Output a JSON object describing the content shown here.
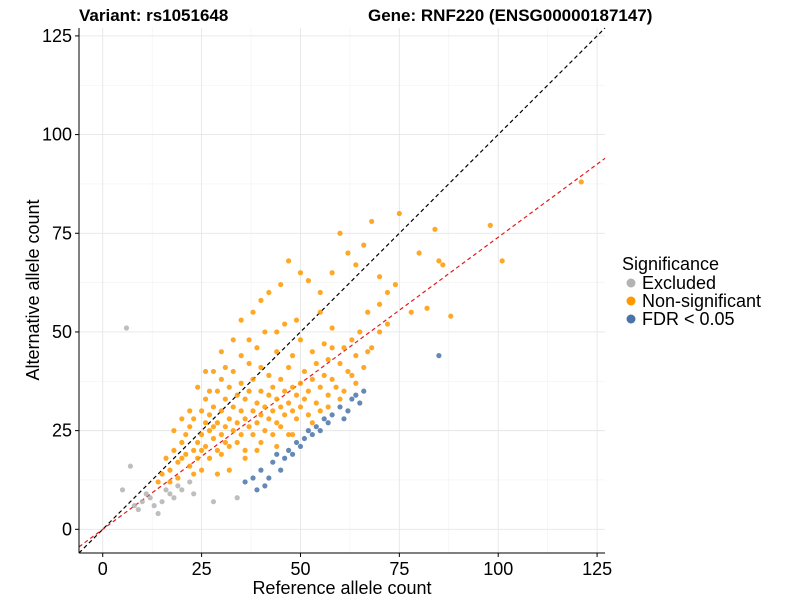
{
  "title": {
    "variant": "Variant: rs1051648",
    "gene": "Gene: RNF220 (ENSG00000187147)"
  },
  "legend": {
    "title": "Significance",
    "items": [
      {
        "label": "Excluded",
        "color": "#b3b3b3"
      },
      {
        "label": "Non-significant",
        "color": "#ff9900"
      },
      {
        "label": "FDR < 0.05",
        "color": "#4a74a8"
      }
    ]
  },
  "chart_data": {
    "type": "scatter",
    "xlabel": "Reference allele count",
    "ylabel": "Alternative allele count",
    "xlim": [
      -6,
      127
    ],
    "ylim": [
      -6,
      127
    ],
    "xticks": [
      0,
      25,
      50,
      75,
      100,
      125
    ],
    "yticks": [
      0,
      25,
      50,
      75,
      100,
      125
    ],
    "grid": true,
    "lines": [
      {
        "name": "identity",
        "slope": 1,
        "intercept": 0,
        "color": "#000000",
        "dash": "dashed"
      },
      {
        "name": "fit",
        "slope": 0.74,
        "intercept": 0,
        "color": "#e41a1c",
        "dash": "dashed"
      }
    ],
    "series": [
      {
        "name": "Excluded",
        "color": "#b3b3b3",
        "points": [
          [
            6,
            51
          ],
          [
            7,
            16
          ],
          [
            5,
            10
          ],
          [
            9,
            5
          ],
          [
            10,
            7
          ],
          [
            12,
            8
          ],
          [
            14,
            4
          ],
          [
            15,
            7
          ],
          [
            17,
            9
          ],
          [
            18,
            8
          ],
          [
            20,
            10
          ],
          [
            23,
            9
          ],
          [
            28,
            7
          ],
          [
            34,
            8
          ],
          [
            16,
            10
          ],
          [
            11,
            9
          ],
          [
            19,
            11
          ],
          [
            22,
            12
          ],
          [
            8,
            6
          ],
          [
            13,
            6
          ]
        ]
      },
      {
        "name": "Non-significant",
        "color": "#ff9900",
        "points": [
          [
            14,
            12
          ],
          [
            15,
            14
          ],
          [
            16,
            18
          ],
          [
            17,
            15
          ],
          [
            18,
            20
          ],
          [
            19,
            17
          ],
          [
            20,
            22
          ],
          [
            20,
            18
          ],
          [
            21,
            24
          ],
          [
            21,
            19
          ],
          [
            22,
            16
          ],
          [
            22,
            26
          ],
          [
            23,
            20
          ],
          [
            23,
            28
          ],
          [
            24,
            22
          ],
          [
            24,
            18
          ],
          [
            25,
            24
          ],
          [
            25,
            30
          ],
          [
            25,
            20
          ],
          [
            26,
            27
          ],
          [
            26,
            21
          ],
          [
            26,
            33
          ],
          [
            27,
            25
          ],
          [
            27,
            29
          ],
          [
            27,
            18
          ],
          [
            28,
            23
          ],
          [
            28,
            31
          ],
          [
            28,
            26
          ],
          [
            29,
            20
          ],
          [
            29,
            35
          ],
          [
            29,
            27
          ],
          [
            30,
            24
          ],
          [
            30,
            30
          ],
          [
            30,
            19
          ],
          [
            30,
            38
          ],
          [
            31,
            26
          ],
          [
            31,
            33
          ],
          [
            31,
            22
          ],
          [
            32,
            28
          ],
          [
            32,
            36
          ],
          [
            32,
            21
          ],
          [
            33,
            25
          ],
          [
            33,
            31
          ],
          [
            33,
            40
          ],
          [
            34,
            27
          ],
          [
            34,
            34
          ],
          [
            34,
            22
          ],
          [
            35,
            30
          ],
          [
            35,
            24
          ],
          [
            35,
            37
          ],
          [
            35,
            44
          ],
          [
            36,
            28
          ],
          [
            36,
            33
          ],
          [
            36,
            20
          ],
          [
            37,
            26
          ],
          [
            37,
            35
          ],
          [
            37,
            42
          ],
          [
            38,
            30
          ],
          [
            38,
            24
          ],
          [
            38,
            38
          ],
          [
            39,
            32
          ],
          [
            39,
            27
          ],
          [
            39,
            46
          ],
          [
            40,
            29
          ],
          [
            40,
            35
          ],
          [
            40,
            22
          ],
          [
            40,
            41
          ],
          [
            41,
            31
          ],
          [
            41,
            25
          ],
          [
            41,
            50
          ],
          [
            42,
            34
          ],
          [
            42,
            28
          ],
          [
            42,
            39
          ],
          [
            43,
            30
          ],
          [
            43,
            36
          ],
          [
            43,
            24
          ],
          [
            44,
            33
          ],
          [
            44,
            27
          ],
          [
            44,
            45
          ],
          [
            45,
            31
          ],
          [
            45,
            38
          ],
          [
            45,
            26
          ],
          [
            46,
            35
          ],
          [
            46,
            29
          ],
          [
            46,
            52
          ],
          [
            47,
            32
          ],
          [
            47,
            41
          ],
          [
            47,
            24
          ],
          [
            48,
            36
          ],
          [
            48,
            30
          ],
          [
            48,
            44
          ],
          [
            49,
            34
          ],
          [
            49,
            28
          ],
          [
            50,
            37
          ],
          [
            50,
            31
          ],
          [
            50,
            48
          ],
          [
            51,
            33
          ],
          [
            51,
            40
          ],
          [
            52,
            35
          ],
          [
            52,
            29
          ],
          [
            53,
            38
          ],
          [
            53,
            45
          ],
          [
            54,
            32
          ],
          [
            54,
            42
          ],
          [
            55,
            36
          ],
          [
            55,
            30
          ],
          [
            56,
            39
          ],
          [
            56,
            47
          ],
          [
            57,
            34
          ],
          [
            57,
            43
          ],
          [
            58,
            38
          ],
          [
            58,
            51
          ],
          [
            59,
            36
          ],
          [
            60,
            42
          ],
          [
            60,
            33
          ],
          [
            61,
            46
          ],
          [
            62,
            40
          ],
          [
            63,
            48
          ],
          [
            64,
            44
          ],
          [
            65,
            50
          ],
          [
            66,
            41
          ],
          [
            67,
            55
          ],
          [
            68,
            46
          ],
          [
            70,
            57
          ],
          [
            72,
            52
          ],
          [
            28,
            40
          ],
          [
            30,
            45
          ],
          [
            33,
            48
          ],
          [
            35,
            53
          ],
          [
            38,
            55
          ],
          [
            40,
            58
          ],
          [
            42,
            60
          ],
          [
            45,
            62
          ],
          [
            47,
            68
          ],
          [
            50,
            65
          ],
          [
            52,
            63
          ],
          [
            55,
            60
          ],
          [
            58,
            65
          ],
          [
            60,
            75
          ],
          [
            62,
            70
          ],
          [
            64,
            67
          ],
          [
            66,
            72
          ],
          [
            68,
            78
          ],
          [
            70,
            64
          ],
          [
            72,
            60
          ],
          [
            74,
            62
          ],
          [
            75,
            80
          ],
          [
            78,
            55
          ],
          [
            80,
            70
          ],
          [
            82,
            56
          ],
          [
            84,
            76
          ],
          [
            85,
            68
          ],
          [
            86,
            67
          ],
          [
            88,
            54
          ],
          [
            98,
            77
          ],
          [
            101,
            68
          ],
          [
            121,
            88
          ],
          [
            24,
            36
          ],
          [
            26,
            40
          ],
          [
            22,
            30
          ],
          [
            20,
            28
          ],
          [
            18,
            25
          ],
          [
            32,
            15
          ],
          [
            36,
            18
          ],
          [
            39,
            20
          ],
          [
            44,
            21
          ],
          [
            48,
            24
          ],
          [
            53,
            27
          ],
          [
            57,
            31
          ],
          [
            61,
            35
          ],
          [
            64,
            37
          ],
          [
            29,
            14
          ],
          [
            25,
            15
          ],
          [
            23,
            14
          ],
          [
            19,
            13
          ],
          [
            17,
            12
          ],
          [
            55,
            55
          ],
          [
            49,
            53
          ],
          [
            44,
            50
          ],
          [
            37,
            48
          ],
          [
            31,
            41
          ],
          [
            27,
            35
          ],
          [
            58,
            46
          ],
          [
            63,
            39
          ],
          [
            67,
            45
          ],
          [
            70,
            50
          ]
        ]
      },
      {
        "name": "FDR < 0.05",
        "color": "#4a74a8",
        "points": [
          [
            36,
            12
          ],
          [
            38,
            13
          ],
          [
            40,
            15
          ],
          [
            42,
            13
          ],
          [
            43,
            17
          ],
          [
            44,
            19
          ],
          [
            45,
            15
          ],
          [
            46,
            18
          ],
          [
            47,
            20
          ],
          [
            48,
            19
          ],
          [
            49,
            22
          ],
          [
            50,
            21
          ],
          [
            51,
            23
          ],
          [
            52,
            25
          ],
          [
            53,
            24
          ],
          [
            54,
            26
          ],
          [
            55,
            25
          ],
          [
            56,
            28
          ],
          [
            57,
            27
          ],
          [
            58,
            29
          ],
          [
            60,
            31
          ],
          [
            61,
            28
          ],
          [
            62,
            30
          ],
          [
            63,
            33
          ],
          [
            64,
            34
          ],
          [
            65,
            32
          ],
          [
            66,
            35
          ],
          [
            85,
            44
          ],
          [
            41,
            11
          ],
          [
            39,
            10
          ]
        ]
      }
    ]
  }
}
